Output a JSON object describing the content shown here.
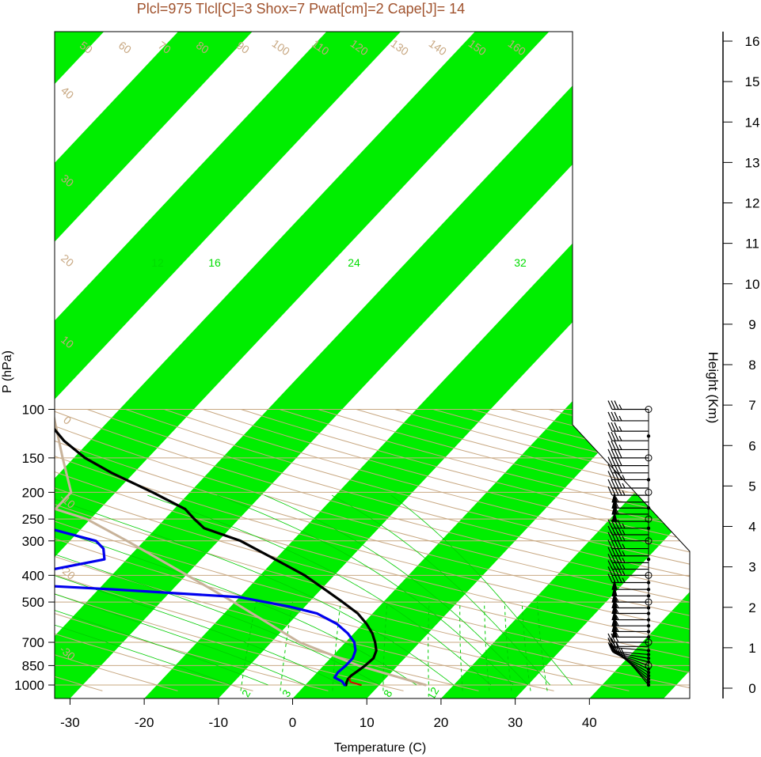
{
  "chart_data": {
    "type": "line",
    "title": "Plcl=975 Tlcl[C]=3 Shox=7 Pwat[cm]=2 Cape[J]= 14",
    "xlabel": "Temperature (C)",
    "ylabel": "P (hPa)",
    "y2label": "Height (Km)",
    "xlim": [
      -33,
      40
    ],
    "ylim": [
      1050,
      100
    ],
    "x_ticks": [
      "-30",
      "-20",
      "-10",
      "0",
      "10",
      "20",
      "30",
      "40"
    ],
    "y_ticks": [
      {
        "p": 100,
        "label": "100"
      },
      {
        "p": 150,
        "label": "150"
      },
      {
        "p": 200,
        "label": "200"
      },
      {
        "p": 250,
        "label": "250"
      },
      {
        "p": 300,
        "label": "300"
      },
      {
        "p": 400,
        "label": "400"
      },
      {
        "p": 500,
        "label": "500"
      },
      {
        "p": 700,
        "label": "700"
      },
      {
        "p": 850,
        "label": "850"
      },
      {
        "p": 1000,
        "label": "1000"
      }
    ],
    "height_ticks": [
      "0",
      "1",
      "2",
      "3",
      "4",
      "5",
      "6",
      "7",
      "8",
      "9",
      "10",
      "11",
      "12",
      "13",
      "14",
      "15",
      "16"
    ],
    "potential_temp_labels": [
      "50",
      "60",
      "70",
      "80",
      "90",
      "100",
      "110",
      "120",
      "130",
      "140",
      "150",
      "160"
    ],
    "isotherm_labels_left": [
      "40",
      "30",
      "20",
      "10",
      "0",
      "-10",
      "-20",
      "-30"
    ],
    "isotherm_labels_right": [
      "30",
      "20",
      "10",
      "0",
      "10",
      "20",
      "30"
    ],
    "mixing_ratio_labels_top": [
      "12",
      "16",
      "24",
      "32"
    ],
    "mixing_ratio_labels_bottom": [
      "2",
      "3",
      "8",
      "12"
    ],
    "colors": {
      "band": "#00ee00",
      "grid": "#c8a882",
      "green_line": "#00cc00",
      "temperature": "#000000",
      "dewpoint": "#0000ee",
      "parcel": "#c8b39a",
      "title": "#a0522d",
      "lcl": "#dd0000"
    },
    "series": [
      {
        "role": "temperature",
        "points": [
          [
            1000,
            5.5
          ],
          [
            975,
            5.2
          ],
          [
            950,
            5.0
          ],
          [
            925,
            5.0
          ],
          [
            900,
            5.2
          ],
          [
            875,
            5.4
          ],
          [
            850,
            5.6
          ],
          [
            800,
            5.8
          ],
          [
            750,
            5.2
          ],
          [
            700,
            4.0
          ],
          [
            650,
            2.5
          ],
          [
            600,
            0.5
          ],
          [
            550,
            -2.0
          ],
          [
            500,
            -5.5
          ],
          [
            450,
            -9.5
          ],
          [
            400,
            -14.0
          ],
          [
            350,
            -20.0
          ],
          [
            300,
            -27.0
          ],
          [
            270,
            -33.5
          ],
          [
            250,
            -36.0
          ],
          [
            230,
            -38.5
          ],
          [
            200,
            -45.0
          ],
          [
            170,
            -53.0
          ],
          [
            150,
            -58.5
          ],
          [
            130,
            -63.5
          ],
          [
            115,
            -67.0
          ],
          [
            103,
            -71.5
          ]
        ]
      },
      {
        "role": "dewpoint",
        "points": [
          [
            1000,
            5.3
          ],
          [
            970,
            4.5
          ],
          [
            940,
            3.0
          ],
          [
            900,
            2.8
          ],
          [
            850,
            3.0
          ],
          [
            800,
            3.0
          ],
          [
            750,
            2.4
          ],
          [
            700,
            1.2
          ],
          [
            650,
            -0.8
          ],
          [
            600,
            -3.5
          ],
          [
            550,
            -7.5
          ],
          [
            520,
            -12.0
          ],
          [
            480,
            -20.0
          ],
          [
            450,
            -38.0
          ],
          [
            420,
            -60.0
          ],
          [
            400,
            -52.0
          ],
          [
            350,
            -43.0
          ],
          [
            320,
            -44.5
          ],
          [
            300,
            -46.5
          ],
          [
            270,
            -54.5
          ],
          [
            240,
            -63.5
          ],
          [
            220,
            -70.0
          ],
          [
            200,
            -70.0
          ],
          [
            170,
            -75.0
          ],
          [
            150,
            -80.0
          ],
          [
            103,
            -96.5
          ]
        ]
      },
      {
        "role": "parcel",
        "points": [
          [
            1000,
            16.2
          ],
          [
            850,
            4.7
          ],
          [
            700,
            -6.2
          ],
          [
            500,
            -20.2
          ],
          [
            400,
            -29.8
          ],
          [
            300,
            -42.3
          ],
          [
            250,
            -50.5
          ],
          [
            230,
            -56.0
          ],
          [
            200,
            -56.0
          ],
          [
            150,
            -61.5
          ],
          [
            103,
            -68.5
          ]
        ]
      },
      {
        "role": "lcl",
        "points": [
          [
            1000,
            7.5
          ],
          [
            975,
            5.7
          ],
          [
            950,
            5.2
          ]
        ]
      }
    ],
    "wind_barbs": [
      {
        "p": 1000,
        "speed": 10,
        "dir": 220
      },
      {
        "p": 975,
        "speed": 10,
        "dir": 225
      },
      {
        "p": 950,
        "speed": 10,
        "dir": 230
      },
      {
        "p": 925,
        "speed": 15,
        "dir": 235
      },
      {
        "p": 900,
        "speed": 15,
        "dir": 240
      },
      {
        "p": 875,
        "speed": 15,
        "dir": 245
      },
      {
        "p": 850,
        "speed": 15,
        "dir": 250
      },
      {
        "p": 825,
        "speed": 15,
        "dir": 255
      },
      {
        "p": 800,
        "speed": 20,
        "dir": 260
      },
      {
        "p": 775,
        "speed": 20,
        "dir": 265
      },
      {
        "p": 750,
        "speed": 25,
        "dir": 265
      },
      {
        "p": 725,
        "speed": 25,
        "dir": 270
      },
      {
        "p": 700,
        "speed": 25,
        "dir": 270
      },
      {
        "p": 670,
        "speed": 55,
        "dir": 270
      },
      {
        "p": 640,
        "speed": 55,
        "dir": 270
      },
      {
        "p": 610,
        "speed": 55,
        "dir": 270
      },
      {
        "p": 580,
        "speed": 55,
        "dir": 270
      },
      {
        "p": 550,
        "speed": 55,
        "dir": 270
      },
      {
        "p": 525,
        "speed": 55,
        "dir": 270
      },
      {
        "p": 500,
        "speed": 55,
        "dir": 270
      },
      {
        "p": 475,
        "speed": 50,
        "dir": 270
      },
      {
        "p": 450,
        "speed": 50,
        "dir": 270
      },
      {
        "p": 425,
        "speed": 45,
        "dir": 270
      },
      {
        "p": 400,
        "speed": 45,
        "dir": 270
      },
      {
        "p": 380,
        "speed": 45,
        "dir": 270
      },
      {
        "p": 360,
        "speed": 45,
        "dir": 270
      },
      {
        "p": 340,
        "speed": 45,
        "dir": 270
      },
      {
        "p": 320,
        "speed": 45,
        "dir": 270
      },
      {
        "p": 300,
        "speed": 45,
        "dir": 270
      },
      {
        "p": 285,
        "speed": 45,
        "dir": 270
      },
      {
        "p": 270,
        "speed": 45,
        "dir": 270
      },
      {
        "p": 255,
        "speed": 50,
        "dir": 270
      },
      {
        "p": 240,
        "speed": 60,
        "dir": 270
      },
      {
        "p": 228,
        "speed": 60,
        "dir": 270
      },
      {
        "p": 217,
        "speed": 55,
        "dir": 270
      },
      {
        "p": 205,
        "speed": 45,
        "dir": 270
      },
      {
        "p": 193,
        "speed": 45,
        "dir": 270
      },
      {
        "p": 180,
        "speed": 45,
        "dir": 270
      },
      {
        "p": 170,
        "speed": 40,
        "dir": 270
      },
      {
        "p": 160,
        "speed": 40,
        "dir": 270
      },
      {
        "p": 150,
        "speed": 40,
        "dir": 270
      },
      {
        "p": 140,
        "speed": 35,
        "dir": 270
      },
      {
        "p": 130,
        "speed": 35,
        "dir": 270
      },
      {
        "p": 120,
        "speed": 35,
        "dir": 270
      },
      {
        "p": 110,
        "speed": 35,
        "dir": 270
      },
      {
        "p": 100,
        "speed": 35,
        "dir": 270
      }
    ],
    "height_markers": [
      {
        "p": 1000,
        "type": "dot"
      },
      {
        "p": 975,
        "type": "dot"
      },
      {
        "p": 950,
        "type": "dot"
      },
      {
        "p": 925,
        "type": "dot"
      },
      {
        "p": 900,
        "type": "dot"
      },
      {
        "p": 875,
        "type": "dot"
      },
      {
        "p": 850,
        "type": "circle"
      },
      {
        "p": 825,
        "type": "dot"
      },
      {
        "p": 800,
        "type": "dot"
      },
      {
        "p": 775,
        "type": "dot"
      },
      {
        "p": 750,
        "type": "dot"
      },
      {
        "p": 700,
        "type": "circle"
      },
      {
        "p": 670,
        "type": "dot"
      },
      {
        "p": 640,
        "type": "dot"
      },
      {
        "p": 610,
        "type": "dot"
      },
      {
        "p": 580,
        "type": "dot"
      },
      {
        "p": 550,
        "type": "dot"
      },
      {
        "p": 525,
        "type": "dot"
      },
      {
        "p": 500,
        "type": "circle"
      },
      {
        "p": 475,
        "type": "dot"
      },
      {
        "p": 450,
        "type": "dot"
      },
      {
        "p": 425,
        "type": "dot"
      },
      {
        "p": 400,
        "type": "circle"
      },
      {
        "p": 350,
        "type": "dot"
      },
      {
        "p": 300,
        "type": "circle"
      },
      {
        "p": 270,
        "type": "dot"
      },
      {
        "p": 250,
        "type": "circle"
      },
      {
        "p": 228,
        "type": "dot"
      },
      {
        "p": 200,
        "type": "circle"
      },
      {
        "p": 180,
        "type": "dot"
      },
      {
        "p": 150,
        "type": "circle"
      },
      {
        "p": 125,
        "type": "dot"
      },
      {
        "p": 100,
        "type": "circle"
      }
    ]
  }
}
